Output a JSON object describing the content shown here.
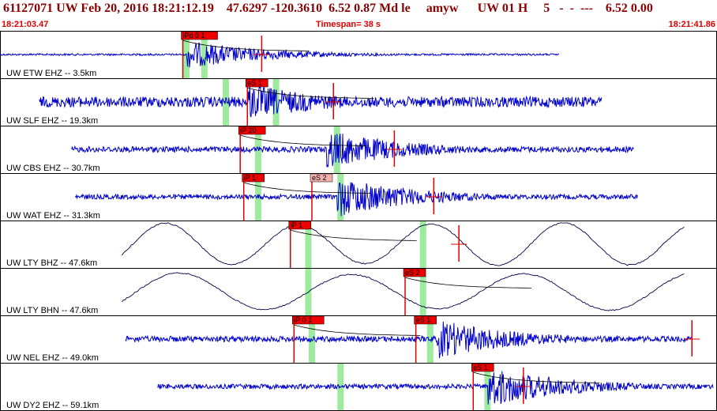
{
  "header": {
    "title": "61127071 UW Feb 20, 2016 18:21:12.19    47.6297 -120.3610  6.52 0.87 Md le     amyw      UW 01 H     5   -  -  ---    6.52 0.00",
    "start_time": "18:21:03.47",
    "timespan": "Timespan=  38 s",
    "end_time": "18:21:41.86"
  },
  "colors": {
    "title": "#8b0000",
    "time_text": "#dd0000",
    "trace_hf": "#0000cc",
    "trace_lp": "#000044",
    "pick_fill": "#ee0000",
    "pick_fill_light": "#f4b0b0",
    "window_green": "#9eea9e",
    "marker_red": "#dd0000",
    "border": "#000000"
  },
  "traces": [
    {
      "label": "UW ETW EHZ -- 3.5km",
      "kind": "hf",
      "start": 0.0,
      "end": 0.78,
      "onset": 0.26,
      "amp": 0.3,
      "noise": 0.02,
      "picks": [
        {
          "text": "iPd 0 1",
          "pos": 0.255,
          "light": false
        }
      ],
      "greens": [
        0.26,
        0.285
      ],
      "redline": 0.365
    },
    {
      "label": "UW SLF EHZ -- 19.3km",
      "kind": "hf",
      "start": 0.055,
      "end": 0.84,
      "onset": 0.345,
      "amp": 0.4,
      "noise": 0.11,
      "picks": [
        {
          "text": "eS 1",
          "pos": 0.345,
          "light": false
        }
      ],
      "greens": [
        0.315,
        0.385
      ],
      "redline": 0.465
    },
    {
      "label": "UW CBS EHZ -- 30.7km",
      "kind": "hf",
      "start": 0.1,
      "end": 0.885,
      "onset": 0.455,
      "amp": 0.42,
      "noise": 0.06,
      "picks": [
        {
          "text": "iP 20",
          "pos": 0.335,
          "light": false
        }
      ],
      "greens": [
        0.36,
        0.47
      ],
      "redline": 0.55
    },
    {
      "label": "UW WAT EHZ -- 31.3km",
      "kind": "hf",
      "start": 0.105,
      "end": 0.89,
      "onset": 0.47,
      "amp": 0.44,
      "noise": 0.05,
      "picks": [
        {
          "text": "iP 1",
          "pos": 0.34,
          "light": false
        },
        {
          "text": "eS 2",
          "pos": 0.435,
          "light": true
        }
      ],
      "greens": [
        0.36,
        0.475
      ],
      "redline": 0.605
    },
    {
      "label": "UW LTY BHZ -- 47.6km",
      "kind": "lp",
      "start": 0.17,
      "end": 0.955,
      "onset": 0.43,
      "amp": 0.45,
      "noise": 0.0,
      "picks": [
        {
          "text": "iP 1",
          "pos": 0.405,
          "light": false
        }
      ],
      "greens": [
        0.43,
        0.59
      ],
      "redline": 0.64
    },
    {
      "label": "UW LTY BHN -- 47.6km",
      "kind": "lp2",
      "start": 0.17,
      "end": 0.955,
      "onset": 0.43,
      "amp": 0.4,
      "noise": 0.0,
      "picks": [
        {
          "text": "eS 2",
          "pos": 0.565,
          "light": false
        }
      ],
      "greens": [
        0.43,
        0.59
      ],
      "redline": null
    },
    {
      "label": "UW NEL EHZ -- 49.0km",
      "kind": "hf",
      "start": 0.175,
      "end": 0.965,
      "onset": 0.61,
      "amp": 0.42,
      "noise": 0.06,
      "picks": [
        {
          "text": "iP 0 1",
          "pos": 0.41,
          "light": false
        },
        {
          "text": "eS 1",
          "pos": 0.58,
          "light": false
        }
      ],
      "greens": [
        0.435,
        0.6
      ],
      "redline": 0.965
    },
    {
      "label": "UW DY2 EHZ -- 59.1km",
      "kind": "hf",
      "start": 0.22,
      "end": 0.995,
      "onset": 0.68,
      "amp": 0.45,
      "noise": 0.05,
      "picks": [
        {
          "text": "eS 1",
          "pos": 0.66,
          "light": false
        }
      ],
      "greens": [
        0.475,
        0.68
      ],
      "redline": 0.73
    }
  ]
}
